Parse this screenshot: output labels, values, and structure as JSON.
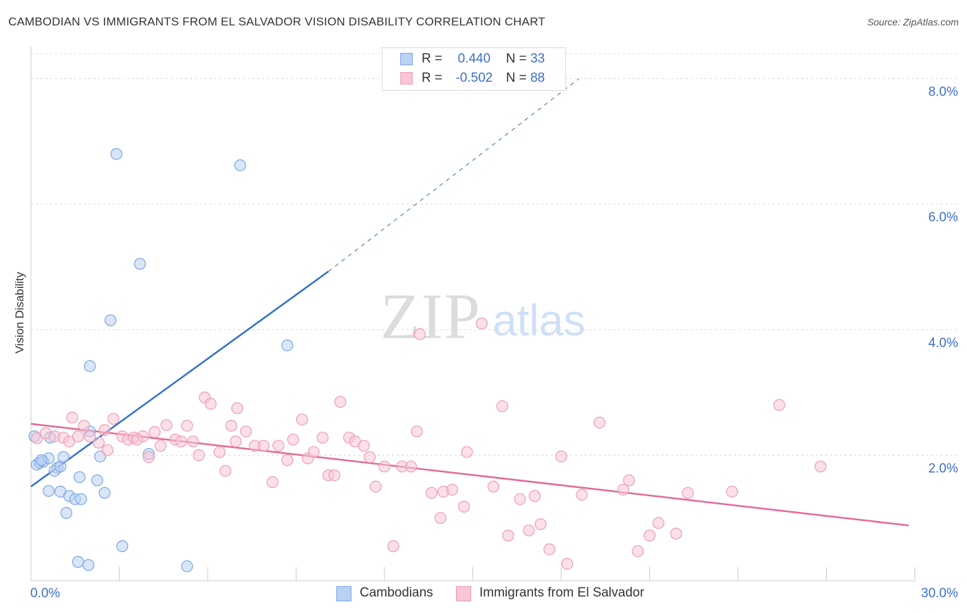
{
  "header": {
    "title": "CAMBODIAN VS IMMIGRANTS FROM EL SALVADOR VISION DISABILITY CORRELATION CHART",
    "source": "Source: ZipAtlas.com"
  },
  "watermark": {
    "zip": "ZIP",
    "atlas": "atlas"
  },
  "legend": {
    "rows": [
      {
        "r_label": "R =",
        "r_value": "0.440",
        "n_label": "N =",
        "n_value": "33"
      },
      {
        "r_label": "R =",
        "r_value": "-0.502",
        "n_label": "N =",
        "n_value": "88"
      }
    ]
  },
  "bottom_legend": {
    "items": [
      {
        "label": "Cambodians"
      },
      {
        "label": "Immigrants from El Salvador"
      }
    ]
  },
  "colors": {
    "blue_fill": "#b9d1f3",
    "blue_edge": "#7aa5e6",
    "blue_line": "#2f6fd0",
    "pink_fill": "#f8c6d4",
    "pink_edge": "#ee9cb6",
    "pink_line": "#e36a97",
    "axis_text": "#3a6fd1",
    "grid": "#d8d8d8"
  },
  "chart_data": {
    "type": "scatter",
    "title": "CAMBODIAN VS IMMIGRANTS FROM EL SALVADOR VISION DISABILITY CORRELATION CHART",
    "xlabel": "",
    "ylabel": "Vision Disability",
    "xlim": [
      0,
      30
    ],
    "ylim": [
      0,
      8.4
    ],
    "x_tick_labels": [
      "0.0%",
      "30.0%"
    ],
    "y_ticks": [
      2,
      4,
      6,
      8
    ],
    "y_tick_labels": [
      "2.0%",
      "4.0%",
      "6.0%",
      "8.0%"
    ],
    "grid": true,
    "legend_position": "top-center",
    "series": [
      {
        "name": "Cambodians",
        "color": "#b9d1f3",
        "r": 0.44,
        "n": 33,
        "trend": {
          "x": [
            0,
            10.1
          ],
          "y": [
            1.5,
            4.93
          ],
          "dashed_to": [
            18.6,
            8.0
          ]
        },
        "points": [
          [
            0.12,
            2.3
          ],
          [
            0.2,
            1.85
          ],
          [
            0.3,
            1.88
          ],
          [
            0.42,
            1.9
          ],
          [
            0.6,
            1.95
          ],
          [
            0.9,
            1.8
          ],
          [
            0.8,
            1.75
          ],
          [
            1.0,
            1.82
          ],
          [
            0.65,
            2.28
          ],
          [
            1.1,
            1.97
          ],
          [
            0.6,
            1.43
          ],
          [
            1.0,
            1.42
          ],
          [
            1.3,
            1.35
          ],
          [
            1.5,
            1.3
          ],
          [
            1.7,
            1.3
          ],
          [
            1.2,
            1.08
          ],
          [
            1.65,
            1.65
          ],
          [
            2.25,
            1.6
          ],
          [
            2.5,
            1.4
          ],
          [
            2.35,
            1.98
          ],
          [
            2.0,
            2.38
          ],
          [
            1.6,
            0.3
          ],
          [
            1.95,
            0.25
          ],
          [
            3.1,
            0.55
          ],
          [
            2.0,
            3.42
          ],
          [
            2.7,
            4.15
          ],
          [
            3.7,
            5.05
          ],
          [
            2.9,
            6.8
          ],
          [
            7.1,
            6.62
          ],
          [
            8.7,
            3.75
          ],
          [
            4.0,
            2.02
          ],
          [
            5.3,
            0.23
          ],
          [
            0.35,
            1.92
          ]
        ]
      },
      {
        "name": "Immigrants from El Salvador",
        "color": "#f8c6d4",
        "r": -0.502,
        "n": 88,
        "trend": {
          "x": [
            0,
            29.8
          ],
          "y": [
            2.5,
            0.88
          ]
        },
        "points": [
          [
            0.2,
            2.27
          ],
          [
            0.5,
            2.35
          ],
          [
            0.8,
            2.3
          ],
          [
            1.1,
            2.28
          ],
          [
            1.3,
            2.22
          ],
          [
            1.4,
            2.6
          ],
          [
            1.6,
            2.3
          ],
          [
            1.8,
            2.47
          ],
          [
            2.0,
            2.3
          ],
          [
            2.3,
            2.2
          ],
          [
            2.5,
            2.4
          ],
          [
            2.6,
            2.08
          ],
          [
            2.8,
            2.58
          ],
          [
            3.1,
            2.3
          ],
          [
            3.3,
            2.25
          ],
          [
            3.5,
            2.28
          ],
          [
            3.8,
            2.3
          ],
          [
            4.0,
            1.97
          ],
          [
            4.2,
            2.37
          ],
          [
            4.4,
            2.15
          ],
          [
            4.6,
            2.48
          ],
          [
            4.9,
            2.25
          ],
          [
            5.1,
            2.22
          ],
          [
            5.3,
            2.47
          ],
          [
            5.5,
            2.22
          ],
          [
            5.7,
            2.0
          ],
          [
            5.9,
            2.92
          ],
          [
            6.1,
            2.82
          ],
          [
            6.4,
            2.05
          ],
          [
            6.6,
            1.75
          ],
          [
            6.8,
            2.47
          ],
          [
            7.0,
            2.75
          ],
          [
            7.3,
            2.38
          ],
          [
            7.6,
            2.15
          ],
          [
            7.9,
            2.15
          ],
          [
            8.2,
            1.57
          ],
          [
            8.4,
            2.15
          ],
          [
            8.7,
            1.92
          ],
          [
            8.9,
            2.25
          ],
          [
            9.2,
            2.57
          ],
          [
            9.4,
            1.95
          ],
          [
            9.6,
            2.05
          ],
          [
            9.9,
            2.28
          ],
          [
            10.1,
            1.68
          ],
          [
            10.3,
            1.68
          ],
          [
            10.5,
            2.85
          ],
          [
            10.8,
            2.28
          ],
          [
            11.0,
            2.22
          ],
          [
            11.3,
            2.15
          ],
          [
            11.5,
            1.97
          ],
          [
            11.7,
            1.5
          ],
          [
            12.0,
            1.82
          ],
          [
            12.3,
            0.55
          ],
          [
            12.6,
            1.82
          ],
          [
            12.9,
            1.82
          ],
          [
            13.1,
            2.38
          ],
          [
            13.2,
            3.93
          ],
          [
            13.6,
            1.4
          ],
          [
            13.9,
            1.0
          ],
          [
            14.0,
            1.42
          ],
          [
            14.3,
            1.45
          ],
          [
            14.7,
            1.18
          ],
          [
            14.8,
            2.05
          ],
          [
            15.3,
            4.1
          ],
          [
            15.7,
            1.5
          ],
          [
            16.0,
            2.78
          ],
          [
            16.2,
            0.72
          ],
          [
            16.6,
            1.3
          ],
          [
            16.9,
            0.8
          ],
          [
            17.1,
            1.35
          ],
          [
            17.3,
            0.9
          ],
          [
            17.6,
            0.5
          ],
          [
            18.0,
            1.98
          ],
          [
            18.2,
            0.27
          ],
          [
            18.7,
            1.37
          ],
          [
            19.3,
            2.52
          ],
          [
            20.1,
            1.45
          ],
          [
            20.3,
            1.6
          ],
          [
            20.6,
            0.47
          ],
          [
            21.0,
            0.72
          ],
          [
            21.3,
            0.92
          ],
          [
            21.9,
            0.75
          ],
          [
            22.3,
            1.4
          ],
          [
            23.8,
            1.42
          ],
          [
            25.4,
            2.8
          ],
          [
            26.8,
            1.82
          ],
          [
            3.6,
            2.25
          ],
          [
            6.95,
            2.22
          ]
        ]
      }
    ]
  }
}
